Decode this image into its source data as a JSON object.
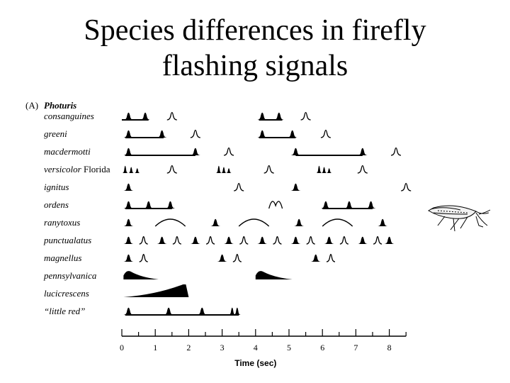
{
  "title_line1": "Species differences in firefly",
  "title_line2": "flashing signals",
  "panel_label": "(A)",
  "genus": "Photuris",
  "species": [
    {
      "name": "consanguines",
      "suffix": ""
    },
    {
      "name": "greeni",
      "suffix": ""
    },
    {
      "name": "macdermotti",
      "suffix": ""
    },
    {
      "name": "versicolor",
      "suffix": " Florida"
    },
    {
      "name": "ignitus",
      "suffix": ""
    },
    {
      "name": "ordens",
      "suffix": ""
    },
    {
      "name": "ranytoxus",
      "suffix": ""
    },
    {
      "name": "punctualatus",
      "suffix": ""
    },
    {
      "name": "magnellus",
      "suffix": ""
    },
    {
      "name": "pennsylvanica",
      "suffix": ""
    },
    {
      "name": "lucicrescens",
      "suffix": ""
    },
    {
      "name": "“little red”",
      "suffix": ""
    }
  ],
  "axis": {
    "xlabel": "Time (sec)",
    "xmin": 0,
    "xmax": 8.5,
    "ticks": [
      "0",
      "1",
      "2",
      "3",
      "4",
      "5",
      "6",
      "7",
      "8"
    ]
  },
  "colors": {
    "ink": "#000000",
    "background": "#ffffff"
  },
  "icon": "firefly-illustration"
}
